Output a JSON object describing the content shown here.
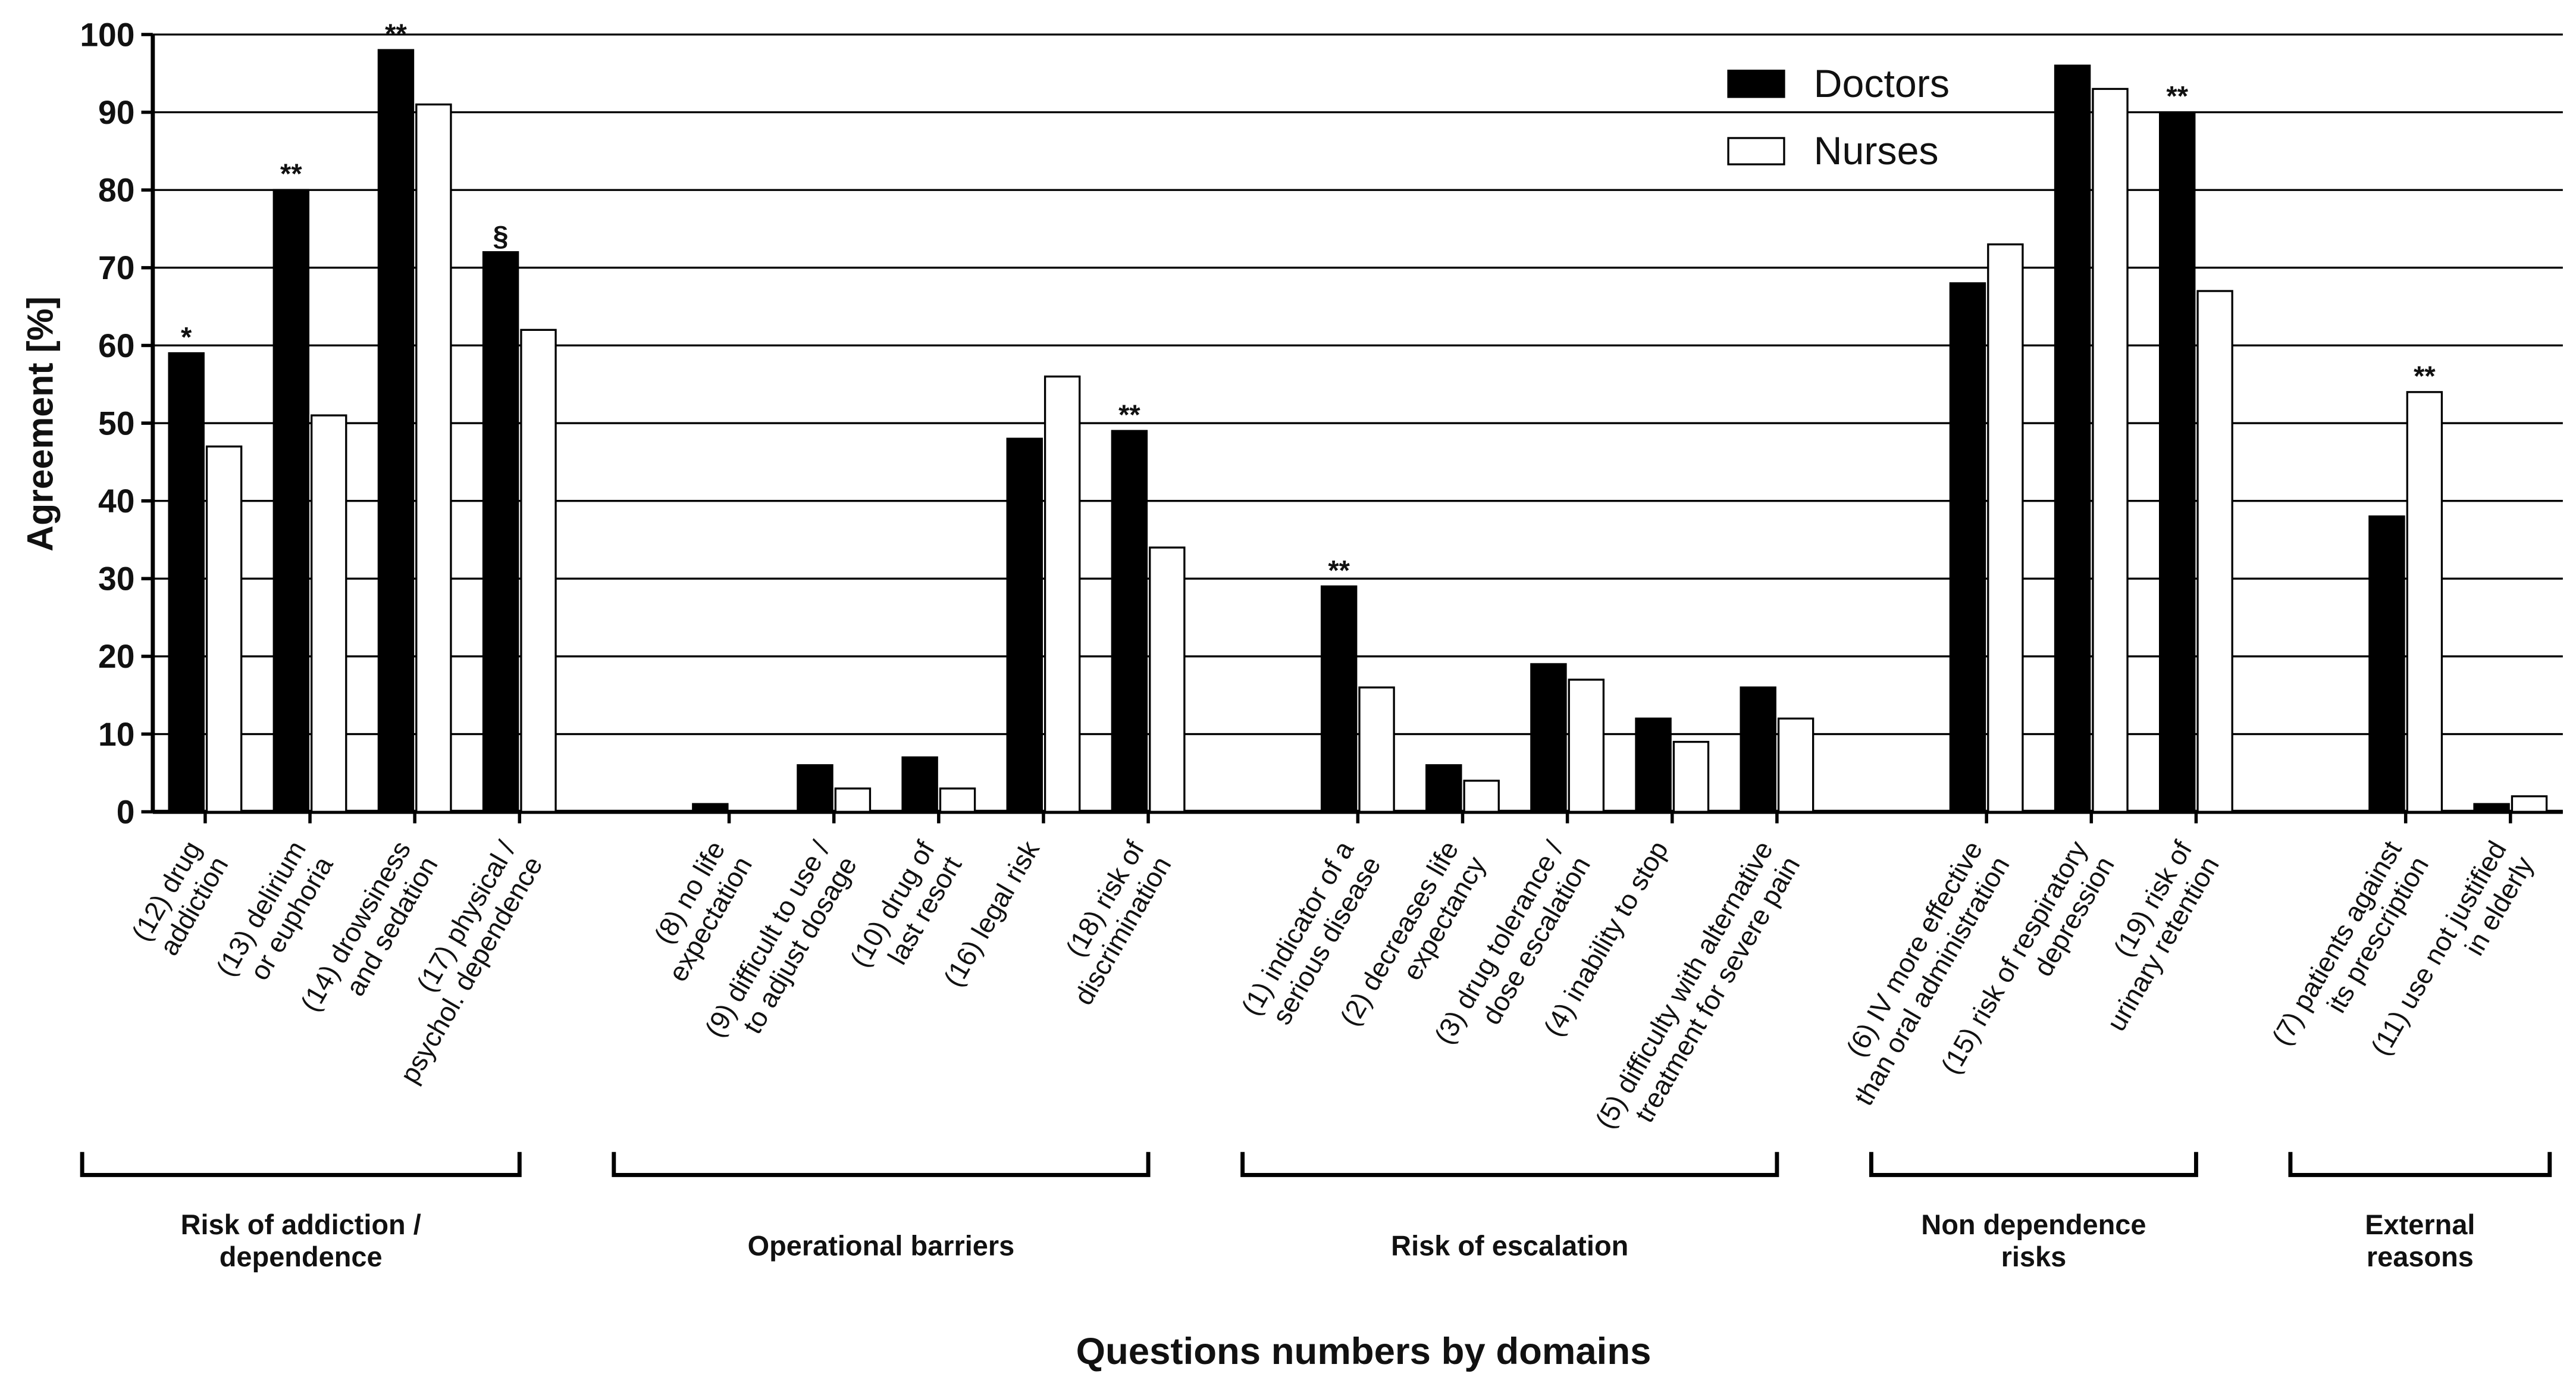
{
  "chart_data": {
    "type": "bar",
    "y_label": "Agreement [%]",
    "x_label": "Questions numbers by domains",
    "categories": [
      "(12) drug\naddiction",
      "(13) delirium\nor euphoria",
      "(14) drowsiness\nand sedation",
      "(17) physical /\npsychol. dependence",
      null,
      "(8) no life\nexpectation",
      "(9) difficult to use /\nto adjust dosage",
      "(10) drug of\nlast resort",
      "(16) legal risk",
      "(18) risk of\ndiscrimination",
      null,
      "(1) indicator of a\nserious disease",
      "(2) decreases life\nexpectancy",
      "(3) drug tolerance /\ndose escalation",
      "(4) inability to stop",
      "(5) difficulty with alternative\ntreatment for severe pain",
      null,
      "(6) IV more effective\nthan oral administration",
      "(15) risk of respiratory\ndepression",
      "(19) risk of\nurinary retention",
      null,
      "(7) patients against\nits prescription",
      "(11) use not justified\nin elderly"
    ],
    "groups": [
      "Risk of addiction /\ndependence",
      "Operational  barriers",
      "Risk of escalation",
      "Non dependence\nrisks",
      "External\nreasons"
    ],
    "series": [
      {
        "name": "Doctors",
        "color": "#000000",
        "edge": "#000000",
        "values": [
          59,
          80,
          98,
          72,
          null,
          1,
          6,
          7,
          48,
          49,
          null,
          29,
          6,
          19,
          12,
          16,
          null,
          68,
          96,
          90,
          null,
          38,
          1
        ],
        "annotations": [
          "*",
          "**",
          "**",
          "§",
          null,
          null,
          null,
          null,
          null,
          "**",
          null,
          "**",
          null,
          null,
          null,
          null,
          null,
          null,
          null,
          "**",
          null,
          null,
          null
        ]
      },
      {
        "name": "Nurses",
        "color": "#ffffff",
        "edge": "#000000",
        "values": [
          47,
          51,
          91,
          62,
          null,
          0,
          3,
          3,
          56,
          34,
          null,
          16,
          4,
          17,
          9,
          12,
          null,
          73,
          93,
          67,
          null,
          54,
          2
        ],
        "annotations": [
          null,
          null,
          null,
          null,
          null,
          null,
          null,
          null,
          null,
          null,
          null,
          null,
          null,
          null,
          null,
          null,
          null,
          null,
          null,
          null,
          null,
          "**",
          null
        ]
      }
    ],
    "ylim": [
      0,
      100
    ],
    "yticks": [
      0,
      10,
      20,
      30,
      40,
      50,
      60,
      70,
      80,
      90,
      100
    ],
    "grid": true,
    "legend": "top-right"
  }
}
